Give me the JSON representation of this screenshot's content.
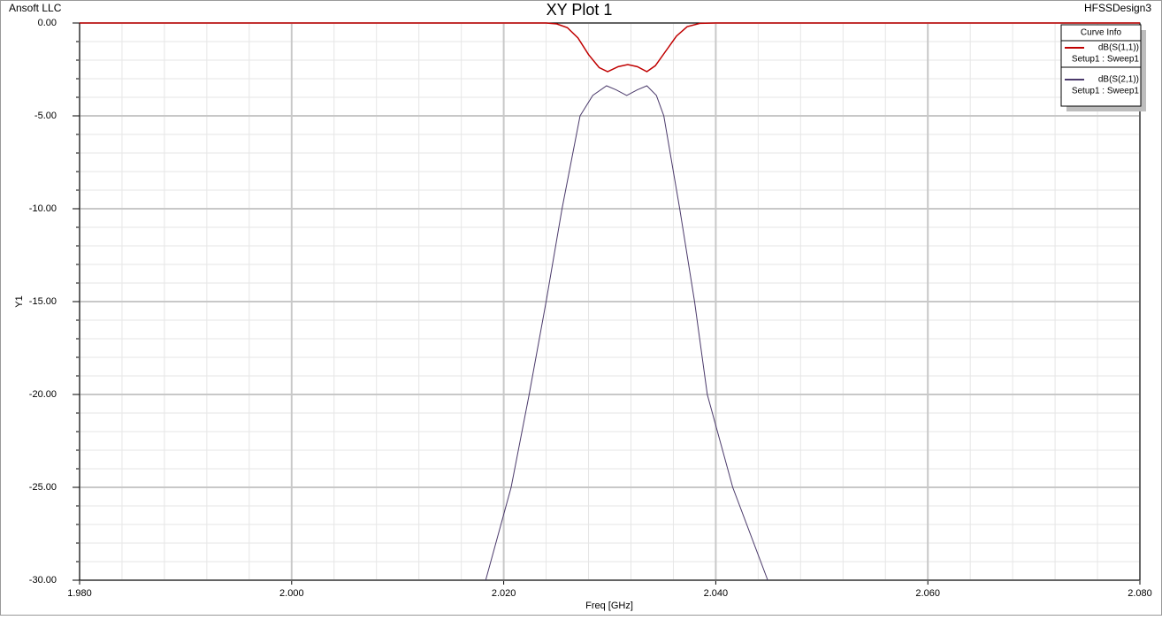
{
  "header": {
    "left": "Ansoft LLC",
    "right": "HFSSDesign3"
  },
  "chart_data": {
    "type": "line",
    "title": "XY Plot 1",
    "x_label": "Freq [GHz]",
    "y_label": "Y1",
    "legend_title": "Curve Info",
    "legend": "upper right",
    "grid": true,
    "xlim": [
      1.98,
      2.08
    ],
    "xticks": [
      {
        "value": 1.98,
        "label": "1.980"
      },
      {
        "value": 2.0,
        "label": "2.000"
      },
      {
        "value": 2.02,
        "label": "2.020"
      },
      {
        "value": 2.04,
        "label": "2.040"
      },
      {
        "value": 2.06,
        "label": "2.060"
      },
      {
        "value": 2.08,
        "label": "2.080"
      }
    ],
    "ylim": [
      -30,
      0
    ],
    "yticks": [
      {
        "value": 0,
        "label": "0.00"
      },
      {
        "value": -5,
        "label": "-5.00"
      },
      {
        "value": -10,
        "label": "-10.00"
      },
      {
        "value": -15,
        "label": "-15.00"
      },
      {
        "value": -20,
        "label": "-20.00"
      },
      {
        "value": -25,
        "label": "-25.00"
      },
      {
        "value": -30,
        "label": "-30.00"
      }
    ],
    "series": [
      {
        "name": "dB(S(1,1))",
        "setup": "Setup1 : Sweep1",
        "color": "#c00000",
        "x": [
          1.98,
          2.024,
          2.025,
          2.026,
          2.027,
          2.028,
          2.029,
          2.0298,
          2.0308,
          2.0317,
          2.0326,
          2.0335,
          2.0343,
          2.0353,
          2.0363,
          2.0373,
          2.0385,
          2.04,
          2.08
        ],
        "values": [
          0,
          0,
          -0.05,
          -0.25,
          -0.8,
          -1.7,
          -2.4,
          -2.62,
          -2.35,
          -2.24,
          -2.35,
          -2.62,
          -2.3,
          -1.5,
          -0.7,
          -0.2,
          -0.02,
          0,
          0
        ]
      },
      {
        "name": "dB(S(2,1))",
        "setup": "Setup1 : Sweep1",
        "color": "#4b3a6b",
        "x": [
          2.0183,
          2.0207,
          2.0224,
          2.024,
          2.0255,
          2.0272,
          2.0284,
          2.0297,
          2.0306,
          2.0316,
          2.0326,
          2.0335,
          2.0344,
          2.0351,
          2.0366,
          2.038,
          2.0392,
          2.0416,
          2.0449
        ],
        "values": [
          -30,
          -25,
          -20,
          -15,
          -10,
          -5,
          -3.9,
          -3.38,
          -3.6,
          -3.9,
          -3.6,
          -3.38,
          -3.9,
          -5,
          -10,
          -15,
          -20,
          -25,
          -30
        ]
      }
    ]
  }
}
